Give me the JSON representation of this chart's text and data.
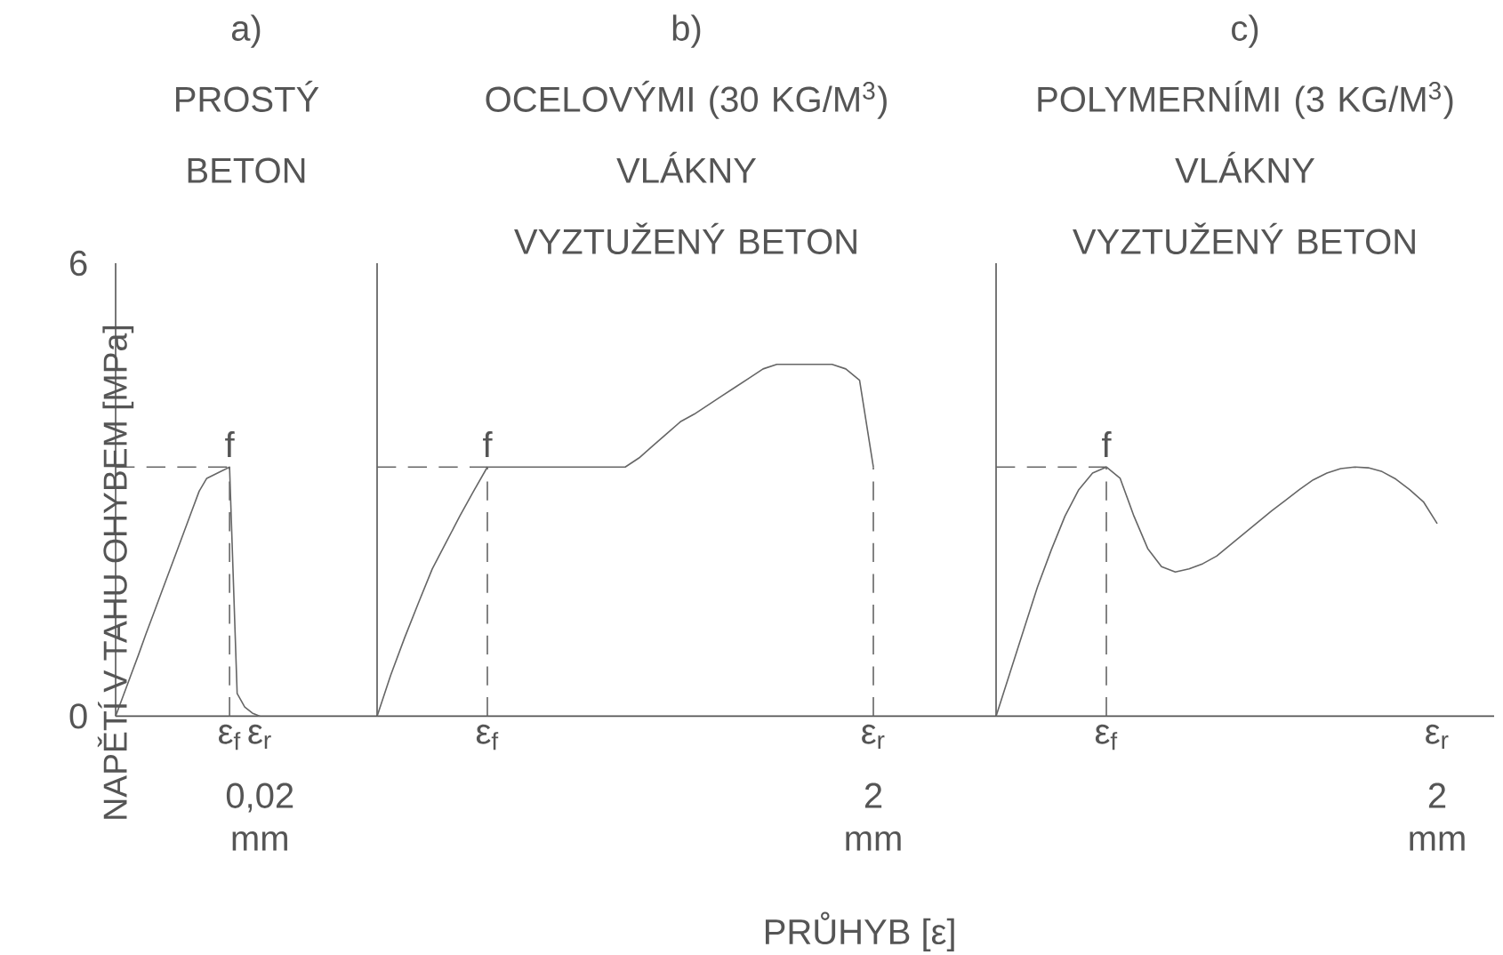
{
  "chart_data": [
    {
      "type": "line",
      "title": "a)",
      "subtitle": "PROSTÝ BETON",
      "ylabel": "NAPĚTÍ V TAHU OHYBEM [MPa]",
      "ylim": [
        0,
        6
      ],
      "yticks": [
        0,
        6
      ],
      "categories": [
        null,
        null,
        null,
        null,
        null,
        null,
        null,
        null,
        null,
        null,
        null,
        null,
        null,
        null,
        null,
        "ε$_{f}$",
        null,
        null,
        null,
        "ε$_{r}$"
      ],
      "series": [
        {
          "color": "#666666",
          "values": [
            0,
            0.27,
            0.54,
            0.81,
            1.09,
            1.36,
            1.63,
            1.9,
            2.17,
            2.44,
            2.71,
            2.98,
            3.15,
            3.2,
            3.25,
            3.3,
            0.3,
            0.12,
            0.04,
            0
          ]
        },
        {
          "color": "#666666",
          "line_style": "dashed",
          "values": [
            3.3,
            3.3,
            3.3,
            3.3,
            3.3,
            3.3,
            3.3,
            3.3,
            3.3,
            3.3,
            3.3,
            3.3,
            3.3,
            3.3,
            3.3,
            3.3,
            null,
            null,
            null,
            null
          ]
        }
      ],
      "ref_lines": [
        {
          "axis": "x",
          "value": "ε$_{f}$",
          "color": "#666666",
          "line_style": "dashed"
        }
      ],
      "annotations": [
        {
          "text": "f",
          "x": "ε$_{f}$",
          "y": 3.3
        },
        "0,02 mm"
      ]
    },
    {
      "type": "line",
      "title": "b)",
      "subtitle": "OCELOVÝMI (30 KG/M$^{3}$) VLÁKNY VYZTUŽENÝ BETON",
      "xlabel": "PRŮHYB [ε]",
      "ylim": [
        0,
        6
      ],
      "tick_labels": "x",
      "categories": [
        null,
        null,
        null,
        null,
        null,
        null,
        null,
        null,
        "ε$_{f}$",
        null,
        null,
        null,
        null,
        null,
        null,
        null,
        null,
        null,
        null,
        null,
        null,
        null,
        null,
        null,
        null,
        null,
        null,
        null,
        null,
        null,
        null,
        null,
        null,
        null,
        null,
        null,
        "ε$_{r}$"
      ],
      "series": [
        {
          "color": "#666666",
          "values": [
            0,
            0.55,
            1.04,
            1.5,
            1.95,
            2.3,
            2.65,
            2.98,
            3.3,
            3.3,
            3.3,
            3.3,
            3.3,
            3.3,
            3.3,
            3.3,
            3.3,
            3.3,
            3.3,
            3.42,
            3.58,
            3.74,
            3.9,
            4.0,
            4.12,
            4.24,
            4.36,
            4.48,
            4.6,
            4.66,
            4.66,
            4.66,
            4.66,
            4.66,
            4.6,
            4.45,
            3.3
          ]
        },
        {
          "color": "#666666",
          "line_style": "dashed",
          "values": [
            3.3,
            3.3,
            3.3,
            3.3,
            3.3,
            3.3,
            3.3,
            3.3,
            3.3,
            null,
            null,
            null,
            null,
            null,
            null,
            null,
            null,
            null,
            null,
            null,
            null,
            null,
            null,
            null,
            null,
            null,
            null,
            null,
            null,
            null,
            null,
            null,
            null,
            null,
            null,
            null,
            null
          ]
        }
      ],
      "ref_lines": [
        {
          "axis": "x",
          "value": "ε$_{f}$",
          "color": "#666666",
          "line_style": "dashed"
        },
        {
          "axis": "x",
          "value": "ε$_{r}$",
          "color": "#666666",
          "line_style": "dashed"
        }
      ],
      "annotations": [
        {
          "text": "f",
          "x": "ε$_{f}$",
          "y": 3.3
        },
        "2 mm"
      ]
    },
    {
      "type": "line",
      "title": "c)",
      "subtitle": "POLYMERNÍMI (3 KG/M$^{3}$) VLÁKNY VYZTUŽENÝ BETON",
      "ylim": [
        0,
        6
      ],
      "tick_labels": "x",
      "categories": [
        null,
        null,
        null,
        null,
        null,
        null,
        null,
        null,
        "ε$_{f}$",
        null,
        null,
        null,
        null,
        null,
        null,
        null,
        null,
        null,
        null,
        null,
        null,
        null,
        null,
        null,
        null,
        null,
        null,
        null,
        null,
        null,
        null,
        null,
        "ε$_{r}$"
      ],
      "series": [
        {
          "color": "#666666",
          "values": [
            0,
            0.57,
            1.14,
            1.71,
            2.2,
            2.65,
            3.0,
            3.22,
            3.3,
            3.15,
            2.65,
            2.22,
            1.98,
            1.91,
            1.95,
            2.02,
            2.12,
            2.27,
            2.42,
            2.57,
            2.72,
            2.86,
            3.0,
            3.13,
            3.22,
            3.28,
            3.3,
            3.29,
            3.24,
            3.14,
            3.0,
            2.84,
            2.55
          ]
        },
        {
          "color": "#666666",
          "line_style": "dashed",
          "values": [
            3.3,
            3.3,
            3.3,
            3.3,
            3.3,
            3.3,
            3.3,
            3.3,
            3.3,
            null,
            null,
            null,
            null,
            null,
            null,
            null,
            null,
            null,
            null,
            null,
            null,
            null,
            null,
            null,
            null,
            null,
            null,
            null,
            null,
            null,
            null,
            null,
            null
          ]
        }
      ],
      "ref_lines": [
        {
          "axis": "x",
          "value": "ε$_{f}$",
          "color": "#666666",
          "line_style": "dashed"
        }
      ],
      "annotations": [
        {
          "text": "f",
          "x": "ε$_{f}$",
          "y": 3.3
        },
        "2 mm"
      ]
    }
  ]
}
